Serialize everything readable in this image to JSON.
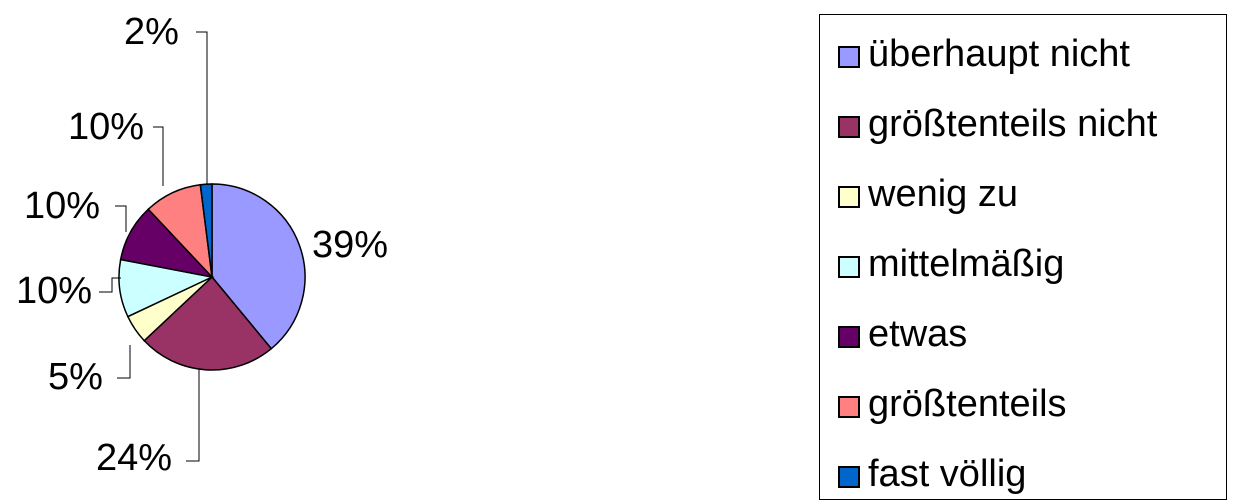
{
  "chart_data": {
    "type": "pie",
    "title": "",
    "slices": [
      {
        "label": "überhaupt nicht",
        "value": 39,
        "display": "39%",
        "color": "#9999ff"
      },
      {
        "label": "größtenteils nicht",
        "value": 24,
        "display": "24%",
        "color": "#993366"
      },
      {
        "label": "wenig zu",
        "value": 5,
        "display": "5%",
        "color": "#ffffcc"
      },
      {
        "label": "mittelmäßig",
        "value": 10,
        "display": "10%",
        "color": "#ccffff"
      },
      {
        "label": "etwas",
        "value": 10,
        "display": "10%",
        "color": "#660066"
      },
      {
        "label": "größtenteils",
        "value": 10,
        "display": "10%",
        "color": "#ff8080"
      },
      {
        "label": "fast völlig",
        "value": 2,
        "display": "2%",
        "color": "#0066cc"
      }
    ],
    "legend_position": "right"
  }
}
